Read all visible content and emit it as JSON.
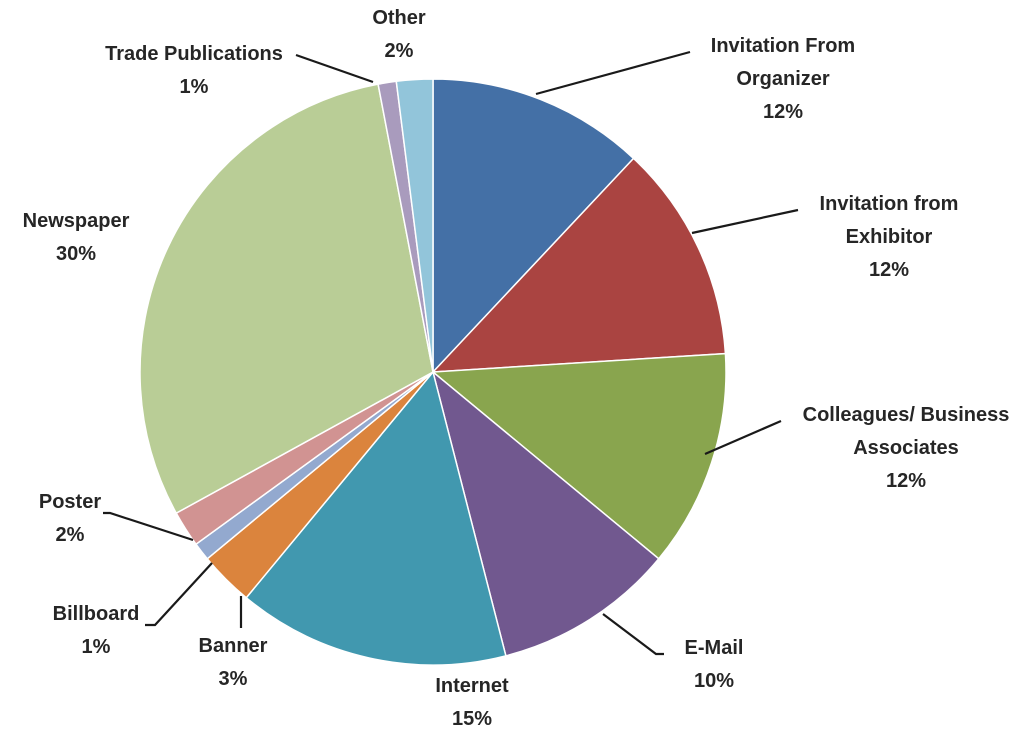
{
  "chart_data": {
    "type": "pie",
    "title": "",
    "start_angle": "12 o'clock",
    "direction": "clockwise",
    "slices": [
      {
        "lines": [
          "Invitation From",
          "Organizer"
        ],
        "percent_label": "12%",
        "value": 12,
        "color": "#4470A6"
      },
      {
        "lines": [
          "Invitation from",
          "Exhibitor"
        ],
        "percent_label": "12%",
        "value": 12,
        "color": "#AA4441"
      },
      {
        "lines": [
          "Colleagues/ Business",
          "Associates"
        ],
        "percent_label": "12%",
        "value": 12,
        "color": "#89A54E"
      },
      {
        "lines": [
          "E-Mail"
        ],
        "percent_label": "10%",
        "value": 10,
        "color": "#71588F"
      },
      {
        "lines": [
          "Internet"
        ],
        "percent_label": "15%",
        "value": 15,
        "color": "#4198AF"
      },
      {
        "lines": [
          "Banner"
        ],
        "percent_label": "3%",
        "value": 3,
        "color": "#DB843D"
      },
      {
        "lines": [
          "Billboard"
        ],
        "percent_label": "1%",
        "value": 1,
        "color": "#93A9CF"
      },
      {
        "lines": [
          "Poster"
        ],
        "percent_label": "2%",
        "value": 2,
        "color": "#D19392"
      },
      {
        "lines": [
          "Newspaper"
        ],
        "percent_label": "30%",
        "value": 30,
        "color": "#B9CD96"
      },
      {
        "lines": [
          "Trade Publications"
        ],
        "percent_label": "1%",
        "value": 1,
        "color": "#A99BBD"
      },
      {
        "lines": [
          "Other"
        ],
        "percent_label": "2%",
        "value": 2,
        "color": "#92C5DA"
      }
    ]
  }
}
